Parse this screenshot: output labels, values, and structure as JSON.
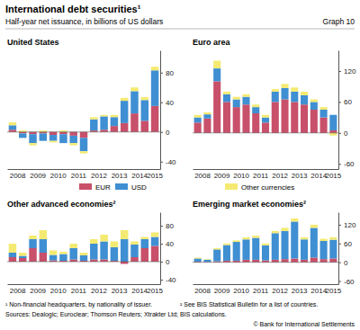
{
  "figure": {
    "title": "International debt securities¹",
    "subtitle": "Half-year net issuance, in billions of US dollars",
    "graph_label": "Graph 10",
    "footnotes": [
      "¹ Non-financial headquarters, by nationality of issuer.",
      "² See BIS Statistical Bulletin for a list of countries."
    ],
    "sources": "Sources: Dealogic; Euroclear; Thomson Reuters; Xtrakter Ltd; BIS calculations.",
    "copyright": "© Bank for International Settlements"
  },
  "chart_data": [
    {
      "type": "bar",
      "stacked": true,
      "legend": "bottom",
      "title": "United States",
      "categories": [
        "2008",
        null,
        "2009",
        null,
        "2010",
        null,
        "2011",
        null,
        "2012",
        null,
        "2013",
        null,
        "2014",
        null,
        "2015"
      ],
      "series": [
        {
          "name": "EUR",
          "color": "#c8506a",
          "values": [
            3,
            -2,
            -3,
            -2,
            -4,
            -3,
            -5,
            -8,
            2,
            3,
            8,
            12,
            25,
            15,
            35
          ]
        },
        {
          "name": "USD",
          "color": "#3f8fd2",
          "values": [
            6,
            -6,
            -12,
            -10,
            -8,
            -12,
            -10,
            -18,
            15,
            18,
            12,
            30,
            30,
            28,
            48
          ]
        },
        {
          "name": "Other currencies",
          "color": "#f4ea72",
          "values": [
            4,
            2,
            -3,
            2,
            -2,
            2,
            -3,
            -3,
            3,
            2,
            3,
            4,
            5,
            4,
            5
          ]
        }
      ],
      "ylim": [
        -50,
        110
      ],
      "yticks": [
        -40,
        0,
        40,
        80
      ]
    },
    {
      "type": "bar",
      "stacked": true,
      "title": "Euro area",
      "categories": [
        "2008",
        null,
        "2009",
        null,
        "2010",
        null,
        "2011",
        null,
        "2012",
        null,
        "2013",
        null,
        "2014",
        null,
        "2015"
      ],
      "series": [
        {
          "name": "EUR",
          "color": "#c8506a",
          "values": [
            20,
            28,
            100,
            60,
            50,
            55,
            38,
            20,
            60,
            65,
            60,
            55,
            45,
            30,
            5
          ]
        },
        {
          "name": "USD",
          "color": "#3f8fd2",
          "values": [
            10,
            8,
            25,
            15,
            15,
            15,
            12,
            10,
            20,
            22,
            20,
            18,
            15,
            15,
            30
          ]
        },
        {
          "name": "Other currencies",
          "color": "#f4ea72",
          "values": [
            5,
            4,
            15,
            5,
            5,
            5,
            5,
            5,
            5,
            8,
            8,
            7,
            5,
            5,
            -5
          ]
        }
      ],
      "ylim": [
        -70,
        160
      ],
      "yticks": [
        -60,
        0,
        60,
        120
      ]
    },
    {
      "type": "bar",
      "stacked": true,
      "title": "Other advanced economies²",
      "categories": [
        "2008",
        null,
        "2009",
        null,
        "2010",
        null,
        "2011",
        null,
        "2012",
        null,
        "2013",
        null,
        "2014",
        null,
        "2015"
      ],
      "series": [
        {
          "name": "EUR",
          "color": "#c8506a",
          "values": [
            10,
            8,
            30,
            20,
            3,
            2,
            5,
            2,
            5,
            5,
            2,
            -5,
            10,
            30,
            35
          ]
        },
        {
          "name": "USD",
          "color": "#3f8fd2",
          "values": [
            10,
            5,
            20,
            30,
            12,
            15,
            25,
            12,
            35,
            40,
            30,
            50,
            28,
            20,
            20
          ]
        },
        {
          "name": "Other currencies",
          "color": "#f4ea72",
          "values": [
            20,
            7,
            8,
            20,
            10,
            5,
            10,
            6,
            10,
            15,
            13,
            20,
            7,
            5,
            10
          ]
        }
      ],
      "ylim": [
        -50,
        110
      ],
      "yticks": [
        -40,
        0,
        40,
        80
      ]
    },
    {
      "type": "bar",
      "stacked": true,
      "title": "Emerging market economies²",
      "categories": [
        "2008",
        null,
        "2009",
        null,
        "2010",
        null,
        "2011",
        null,
        "2012",
        null,
        "2013",
        null,
        "2014",
        null,
        "2015"
      ],
      "series": [
        {
          "name": "EUR",
          "color": "#c8506a",
          "values": [
            2,
            1,
            3,
            5,
            5,
            8,
            8,
            6,
            8,
            10,
            12,
            8,
            15,
            10,
            12
          ]
        },
        {
          "name": "USD",
          "color": "#3f8fd2",
          "values": [
            10,
            7,
            38,
            50,
            60,
            65,
            70,
            48,
            85,
            90,
            118,
            65,
            95,
            58,
            60
          ]
        },
        {
          "name": "Other currencies",
          "color": "#f4ea72",
          "values": [
            3,
            2,
            4,
            5,
            5,
            7,
            7,
            6,
            7,
            10,
            10,
            7,
            10,
            7,
            8
          ]
        }
      ],
      "ylim": [
        -70,
        160
      ],
      "yticks": [
        -60,
        0,
        60,
        120
      ]
    }
  ]
}
